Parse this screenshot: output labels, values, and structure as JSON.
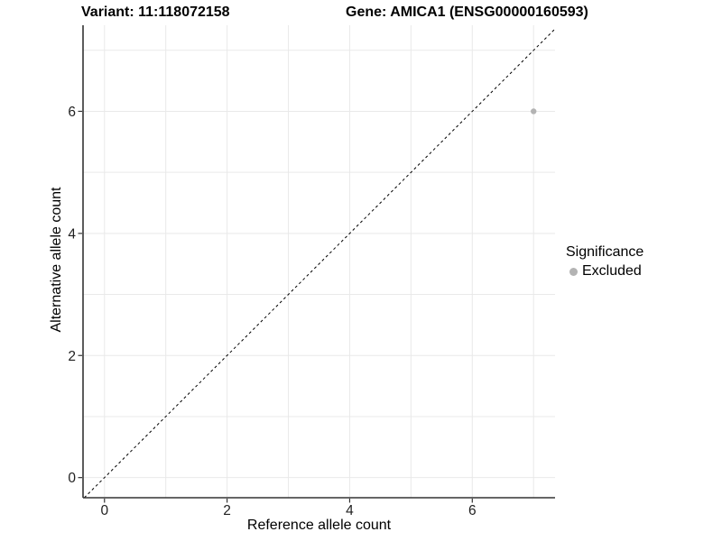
{
  "chart_data": {
    "type": "scatter",
    "title_left": "Variant: 11:118072158",
    "title_right": "Gene: AMICA1 (ENSG00000160593)",
    "xlabel": "Reference allele count",
    "ylabel": "Alternative allele count",
    "xlim": [
      -0.35,
      7.35
    ],
    "ylim": [
      -0.33,
      7.41
    ],
    "x_ticks": [
      0,
      2,
      4,
      6
    ],
    "y_ticks": [
      0,
      2,
      4,
      6
    ],
    "grid_lines": [
      0,
      1,
      2,
      3,
      4,
      5,
      6,
      7
    ],
    "grid": "on",
    "series": [
      {
        "name": "Excluded",
        "color": "#b3b3b3",
        "points": [
          {
            "x": 7,
            "y": 6
          }
        ]
      }
    ],
    "reference_line": {
      "slope": 1,
      "intercept": 0,
      "style": "dashed",
      "color": "#000000"
    },
    "legend": {
      "title": "Significance",
      "position": "right",
      "items": [
        {
          "label": "Excluded",
          "color": "#b3b3b3",
          "marker": "circle"
        }
      ]
    },
    "colors": {
      "grid": "#e9e9e9",
      "axis": "#333333",
      "tick_text": "#1f1f1f"
    }
  }
}
